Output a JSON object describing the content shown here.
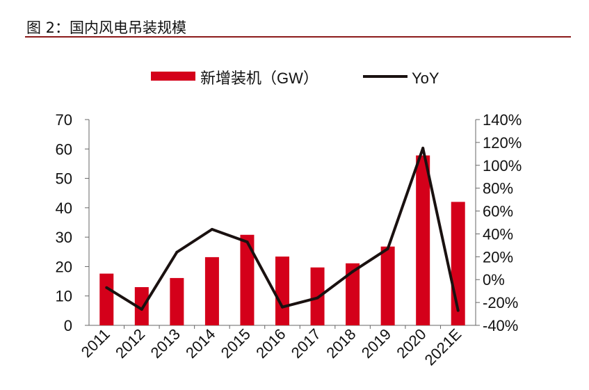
{
  "figure_title": "图 2：国内风电吊装规模",
  "colors": {
    "bar": "#d4001a",
    "line": "#1a1110",
    "axis": "#666666",
    "title_rule": "#8b1a1a"
  },
  "chart_data": {
    "type": "bar",
    "title": "",
    "categories": [
      "2011",
      "2012",
      "2013",
      "2014",
      "2015",
      "2016",
      "2017",
      "2018",
      "2019",
      "2020",
      "2021E"
    ],
    "series": [
      {
        "name": "新增装机（GW）",
        "type": "bar",
        "axis": "left",
        "values": [
          17.6,
          13.0,
          16.1,
          23.2,
          30.8,
          23.4,
          19.7,
          21.1,
          26.8,
          57.8,
          42.0
        ]
      },
      {
        "name": "YoY",
        "type": "line",
        "axis": "right",
        "values": [
          -7,
          -26,
          24,
          44,
          33,
          -24,
          -16,
          7,
          27,
          115,
          -27
        ]
      }
    ],
    "y_left": {
      "ylim": [
        0,
        70
      ],
      "ticks": [
        "0",
        "10",
        "20",
        "30",
        "40",
        "50",
        "60",
        "70"
      ]
    },
    "y_right": {
      "ylim": [
        -40,
        140
      ],
      "ticks": [
        "-40%",
        "-20%",
        "0%",
        "20%",
        "40%",
        "60%",
        "80%",
        "100%",
        "120%",
        "140%"
      ]
    },
    "legend": {
      "position": "top",
      "items": [
        "新增装机（GW）",
        "YoY"
      ]
    },
    "grid": false
  }
}
